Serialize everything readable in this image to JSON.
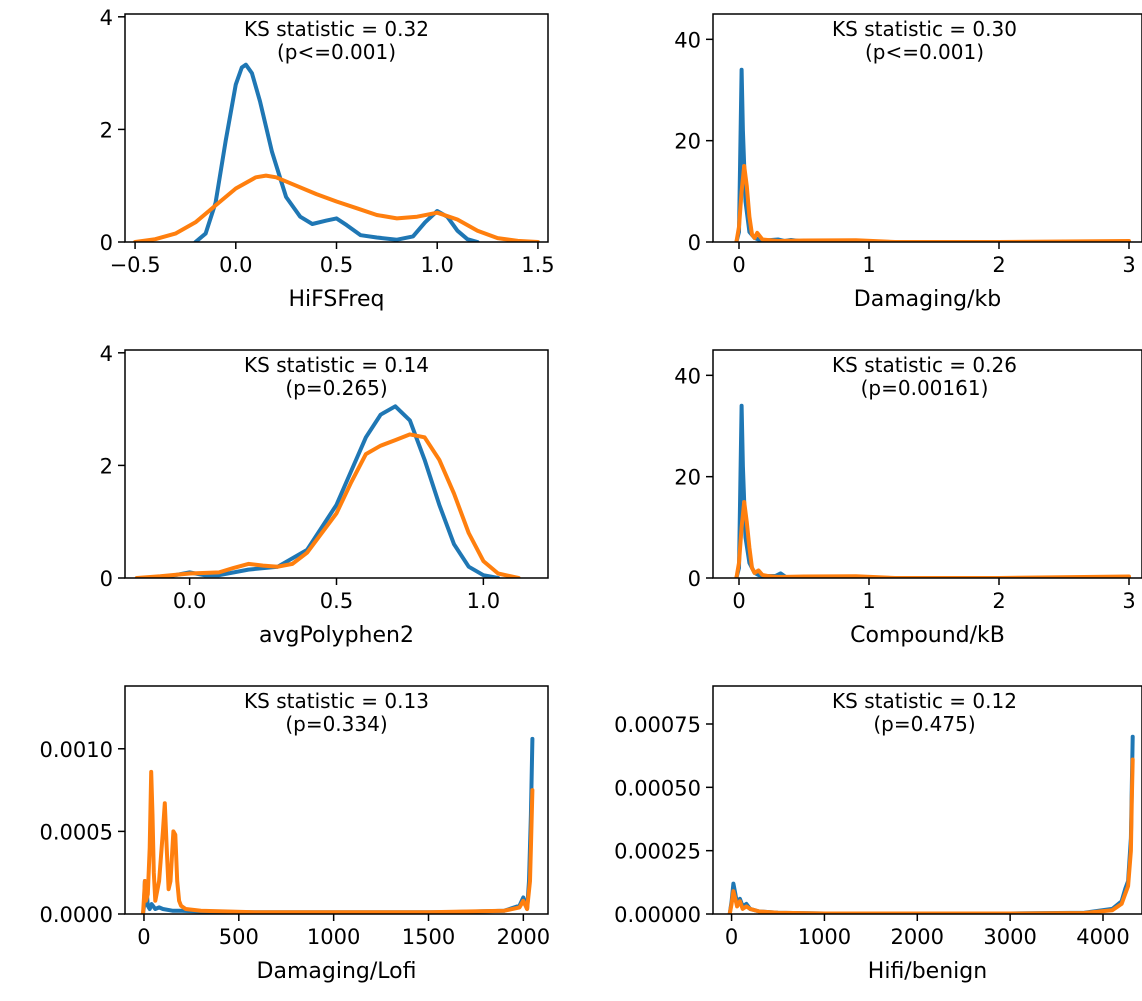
{
  "colors": {
    "series_a": "#1f77b4",
    "series_b": "#ff7f0e"
  },
  "chart_data": [
    {
      "type": "line",
      "xlabel": "HiFSFreq",
      "annotation": [
        "KS statistic = 0.32",
        "(p<=0.001)"
      ],
      "xlim": [
        -0.55,
        1.55
      ],
      "ylim": [
        0,
        4.05
      ],
      "xticks": [
        -0.5,
        0.0,
        0.5,
        1.0,
        1.5
      ],
      "xtick_labels": [
        "−0.5",
        "0.0",
        "0.5",
        "1.0",
        "1.5"
      ],
      "yticks": [
        0,
        2,
        4
      ],
      "ytick_labels": [
        "0",
        "2",
        "4"
      ],
      "series": [
        {
          "x": [
            -0.2,
            -0.15,
            -0.1,
            -0.05,
            0.0,
            0.03,
            0.05,
            0.08,
            0.12,
            0.18,
            0.25,
            0.32,
            0.38,
            0.45,
            0.5,
            0.55,
            0.62,
            0.7,
            0.8,
            0.88,
            0.94,
            1.0,
            1.05,
            1.1,
            1.15,
            1.2
          ],
          "values": [
            0.0,
            0.15,
            0.7,
            1.8,
            2.8,
            3.1,
            3.15,
            3.0,
            2.5,
            1.6,
            0.8,
            0.45,
            0.32,
            0.38,
            0.42,
            0.3,
            0.12,
            0.08,
            0.04,
            0.1,
            0.35,
            0.55,
            0.45,
            0.2,
            0.05,
            0.0
          ]
        },
        {
          "x": [
            -0.5,
            -0.4,
            -0.3,
            -0.2,
            -0.1,
            0.0,
            0.1,
            0.15,
            0.2,
            0.3,
            0.4,
            0.5,
            0.6,
            0.7,
            0.8,
            0.9,
            1.0,
            1.1,
            1.2,
            1.3,
            1.4,
            1.5
          ],
          "values": [
            0.0,
            0.05,
            0.15,
            0.35,
            0.65,
            0.95,
            1.15,
            1.18,
            1.15,
            1.0,
            0.85,
            0.72,
            0.6,
            0.48,
            0.42,
            0.45,
            0.52,
            0.4,
            0.2,
            0.07,
            0.02,
            0.0
          ]
        }
      ]
    },
    {
      "type": "line",
      "xlabel": "Damaging/kb",
      "annotation": [
        "KS statistic = 0.30",
        "(p<=0.001)"
      ],
      "xlim": [
        -0.2,
        3.1
      ],
      "ylim": [
        0,
        45
      ],
      "xticks": [
        0,
        1,
        2,
        3
      ],
      "xtick_labels": [
        "0",
        "1",
        "2",
        "3"
      ],
      "yticks": [
        0,
        20,
        40
      ],
      "ytick_labels": [
        "0",
        "20",
        "40"
      ],
      "series": [
        {
          "x": [
            -0.02,
            0.0,
            0.01,
            0.02,
            0.03,
            0.05,
            0.08,
            0.12,
            0.15,
            0.2,
            0.3,
            0.35,
            0.4,
            0.5,
            0.6,
            1.0,
            2.0,
            3.0
          ],
          "values": [
            0,
            2,
            18,
            34,
            22,
            8,
            2,
            0.8,
            0.5,
            0.3,
            0.5,
            0.2,
            0.4,
            0.1,
            0,
            0,
            0,
            0
          ]
        },
        {
          "x": [
            -0.02,
            0.0,
            0.02,
            0.04,
            0.06,
            0.08,
            0.1,
            0.12,
            0.14,
            0.18,
            0.22,
            0.3,
            0.5,
            0.9,
            1.2,
            2.0,
            3.0
          ],
          "values": [
            0,
            3,
            10,
            15,
            11,
            5,
            1.5,
            0.8,
            1.8,
            0.5,
            0.4,
            0.2,
            0.3,
            0.35,
            0,
            0,
            0.2
          ]
        }
      ]
    },
    {
      "type": "line",
      "xlabel": "avgPolyphen2",
      "annotation": [
        "KS statistic = 0.14",
        "(p=0.265)"
      ],
      "xlim": [
        -0.22,
        1.22
      ],
      "ylim": [
        0,
        4.05
      ],
      "xticks": [
        0.0,
        0.5,
        1.0
      ],
      "xtick_labels": [
        "0.0",
        "0.5",
        "1.0"
      ],
      "yticks": [
        0,
        2,
        4
      ],
      "ytick_labels": [
        "0",
        "2",
        "4"
      ],
      "series": [
        {
          "x": [
            -0.1,
            -0.05,
            0.0,
            0.05,
            0.1,
            0.2,
            0.3,
            0.4,
            0.5,
            0.55,
            0.6,
            0.65,
            0.7,
            0.75,
            0.8,
            0.85,
            0.9,
            0.95,
            1.0,
            1.05
          ],
          "values": [
            0.0,
            0.05,
            0.1,
            0.05,
            0.05,
            0.15,
            0.2,
            0.5,
            1.3,
            1.9,
            2.5,
            2.9,
            3.05,
            2.8,
            2.1,
            1.3,
            0.6,
            0.2,
            0.05,
            0.0
          ]
        },
        {
          "x": [
            -0.18,
            -0.1,
            0.0,
            0.1,
            0.15,
            0.2,
            0.25,
            0.3,
            0.35,
            0.4,
            0.5,
            0.55,
            0.6,
            0.65,
            0.7,
            0.75,
            0.8,
            0.85,
            0.9,
            0.95,
            1.0,
            1.05,
            1.12
          ],
          "values": [
            0.0,
            0.03,
            0.08,
            0.1,
            0.18,
            0.25,
            0.22,
            0.2,
            0.25,
            0.45,
            1.15,
            1.7,
            2.2,
            2.35,
            2.45,
            2.55,
            2.5,
            2.1,
            1.5,
            0.8,
            0.3,
            0.08,
            0.0
          ]
        }
      ]
    },
    {
      "type": "line",
      "xlabel": "Compound/kB",
      "annotation": [
        "KS statistic = 0.26",
        "(p=0.00161)"
      ],
      "xlim": [
        -0.2,
        3.1
      ],
      "ylim": [
        0,
        45
      ],
      "xticks": [
        0,
        1,
        2,
        3
      ],
      "xtick_labels": [
        "0",
        "1",
        "2",
        "3"
      ],
      "yticks": [
        0,
        20,
        40
      ],
      "ytick_labels": [
        "0",
        "20",
        "40"
      ],
      "series": [
        {
          "x": [
            -0.02,
            0.0,
            0.01,
            0.02,
            0.03,
            0.05,
            0.08,
            0.12,
            0.15,
            0.2,
            0.28,
            0.32,
            0.36,
            0.5,
            0.6,
            1.0,
            2.0,
            3.0
          ],
          "values": [
            0,
            2,
            18,
            34,
            22,
            8,
            3,
            1,
            0.6,
            0.4,
            0.4,
            0.9,
            0.2,
            0.1,
            0,
            0,
            0,
            0
          ]
        },
        {
          "x": [
            -0.02,
            0.0,
            0.02,
            0.04,
            0.06,
            0.08,
            0.1,
            0.12,
            0.15,
            0.18,
            0.22,
            0.3,
            0.5,
            0.9,
            1.2,
            2.0,
            3.0
          ],
          "values": [
            0,
            3,
            10,
            15,
            11,
            6,
            2,
            1,
            1.5,
            0.6,
            0.4,
            0.2,
            0.3,
            0.35,
            0,
            0,
            0.3
          ]
        }
      ]
    },
    {
      "type": "line",
      "xlabel": "Damaging/Lofi",
      "annotation": [
        "KS statistic = 0.13",
        "(p=0.334)"
      ],
      "xlim": [
        -100,
        2130
      ],
      "ylim": [
        0,
        0.00138
      ],
      "xticks": [
        0,
        500,
        1000,
        1500,
        2000
      ],
      "xtick_labels": [
        "0",
        "500",
        "1000",
        "1500",
        "2000"
      ],
      "yticks": [
        0,
        0.0005,
        0.001
      ],
      "ytick_labels": [
        "0.0000",
        "0.0005",
        "0.0010"
      ],
      "series": [
        {
          "x": [
            -5,
            0,
            5,
            12,
            20,
            30,
            40,
            60,
            80,
            100,
            150,
            200,
            400,
            800,
            1200,
            1600,
            1900,
            1980,
            2000,
            2020,
            2030,
            2040,
            2048
          ],
          "values": [
            0,
            5e-05,
            0.0002,
            0.00018,
            5e-05,
            3e-05,
            6e-05,
            3e-05,
            4e-05,
            3e-05,
            2e-05,
            2e-05,
            1e-05,
            1e-05,
            1e-05,
            1e-05,
            2e-05,
            5e-05,
            0.0001,
            3e-05,
            0.0002,
            0.0006,
            0.00106
          ]
        },
        {
          "x": [
            -5,
            0,
            5,
            10,
            20,
            30,
            38,
            45,
            52,
            60,
            80,
            100,
            110,
            120,
            130,
            140,
            155,
            165,
            175,
            185,
            195,
            220,
            300,
            600,
            1000,
            1500,
            1900,
            1980,
            2000,
            2020,
            2035,
            2040,
            2048
          ],
          "values": [
            0,
            0.0001,
            0.0002,
            8e-05,
            0.00012,
            0.0004,
            0.00086,
            0.0006,
            0.00025,
            8e-05,
            0.0002,
            0.0005,
            0.00067,
            0.0004,
            0.00015,
            0.0002,
            0.0005,
            0.00048,
            0.0002,
            8e-05,
            5e-05,
            3e-05,
            2e-05,
            1e-05,
            1e-05,
            1e-05,
            2e-05,
            4e-05,
            8e-05,
            3e-05,
            0.0002,
            0.0004,
            0.00075
          ]
        }
      ]
    },
    {
      "type": "line",
      "xlabel": "Hifi/benign",
      "annotation": [
        "KS statistic = 0.12",
        "(p=0.475)"
      ],
      "xlim": [
        -200,
        4420
      ],
      "ylim": [
        0,
        0.0009
      ],
      "xticks": [
        0,
        1000,
        2000,
        3000,
        4000
      ],
      "xtick_labels": [
        "0",
        "1000",
        "2000",
        "3000",
        "4000"
      ],
      "yticks": [
        0,
        0.00025,
        0.0005,
        0.00075
      ],
      "ytick_labels": [
        "0.00000",
        "0.00025",
        "0.00050",
        "0.00075"
      ],
      "series": [
        {
          "x": [
            -20,
            0,
            20,
            40,
            60,
            90,
            120,
            160,
            200,
            300,
            500,
            1000,
            2000,
            3000,
            3800,
            4100,
            4200,
            4240,
            4270,
            4300,
            4310,
            4320
          ],
          "values": [
            0,
            5e-05,
            0.00012,
            8e-05,
            4e-05,
            6e-05,
            3e-05,
            4e-05,
            2e-05,
            1e-05,
            5e-06,
            2e-06,
            2e-06,
            2e-06,
            5e-06,
            2e-05,
            5e-05,
            0.0001,
            0.00013,
            0.0003,
            0.0005,
            0.0007
          ]
        },
        {
          "x": [
            -20,
            0,
            20,
            40,
            60,
            90,
            120,
            160,
            200,
            300,
            500,
            1000,
            2000,
            3000,
            3800,
            4100,
            4200,
            4240,
            4270,
            4300,
            4310,
            4320
          ],
          "values": [
            0,
            4e-05,
            9e-05,
            6e-05,
            3e-05,
            5e-05,
            2e-05,
            3e-05,
            2e-05,
            1e-05,
            5e-06,
            2e-06,
            2e-06,
            2e-06,
            4e-06,
            1.5e-05,
            4e-05,
            8e-05,
            0.00011,
            0.00025,
            0.00045,
            0.00061
          ]
        }
      ]
    }
  ]
}
